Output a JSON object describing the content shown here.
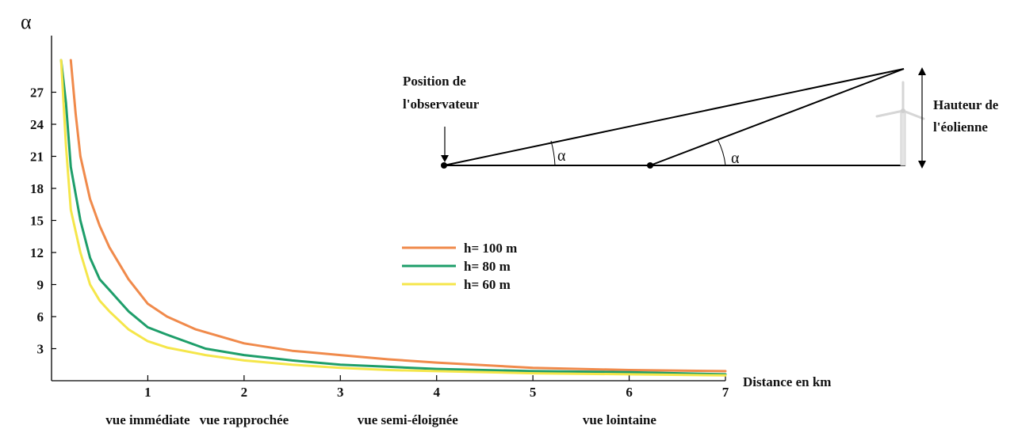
{
  "chart_data": {
    "type": "line",
    "ylabel": "α",
    "xlabel": "Distance en km",
    "xlim": [
      0,
      7
    ],
    "ylim": [
      0,
      30
    ],
    "x_ticks": [
      "1",
      "2",
      "3",
      "4",
      "5",
      "6",
      "7"
    ],
    "y_ticks": [
      "3",
      "6",
      "9",
      "12",
      "15",
      "18",
      "21",
      "24",
      "27"
    ],
    "zones": [
      {
        "label": "vue immédiate",
        "x": 1
      },
      {
        "label": "vue rapprochée",
        "x": 2
      },
      {
        "label": "vue semi-éloignée",
        "x": 3.7
      },
      {
        "label": "vue lointaine",
        "x": 5.9
      }
    ],
    "series": [
      {
        "name": "h= 100 m",
        "color": "#f08a4b",
        "x": [
          0.2,
          0.25,
          0.3,
          0.4,
          0.5,
          0.6,
          0.8,
          1.0,
          1.2,
          1.5,
          2.0,
          2.5,
          3.0,
          3.5,
          4.0,
          5.0,
          6.0,
          7.0
        ],
        "y": [
          30,
          25,
          21,
          17,
          14.5,
          12.5,
          9.5,
          7.2,
          6.0,
          4.8,
          3.5,
          2.8,
          2.4,
          2.0,
          1.7,
          1.2,
          1.0,
          0.9
        ]
      },
      {
        "name": "h= 80 m",
        "color": "#1e9e6a",
        "x": [
          0.1,
          0.15,
          0.2,
          0.3,
          0.4,
          0.5,
          0.6,
          0.8,
          1.0,
          1.2,
          1.6,
          2.0,
          2.5,
          3.0,
          3.5,
          4.0,
          5.0,
          6.0,
          7.0
        ],
        "y": [
          30,
          26,
          20,
          15,
          11.5,
          9.5,
          8.5,
          6.5,
          5.0,
          4.3,
          3.0,
          2.4,
          1.9,
          1.5,
          1.3,
          1.1,
          0.9,
          0.8,
          0.6
        ]
      },
      {
        "name": "h= 60 m",
        "color": "#f5e64a",
        "x": [
          0.1,
          0.15,
          0.2,
          0.3,
          0.4,
          0.5,
          0.6,
          0.8,
          1.0,
          1.2,
          1.6,
          2.0,
          2.5,
          3.0,
          3.5,
          4.0,
          5.0,
          6.0,
          7.0
        ],
        "y": [
          30,
          22,
          16,
          12,
          9,
          7.5,
          6.5,
          4.8,
          3.7,
          3.1,
          2.4,
          1.9,
          1.5,
          1.2,
          1.0,
          0.9,
          0.7,
          0.6,
          0.5
        ]
      }
    ],
    "legend_position": "center"
  },
  "diagram": {
    "observer_label_1": "Position de",
    "observer_label_2": "l'observateur",
    "height_label_1": "Hauteur de",
    "height_label_2": "l'éolienne",
    "angle_symbol": "α"
  }
}
